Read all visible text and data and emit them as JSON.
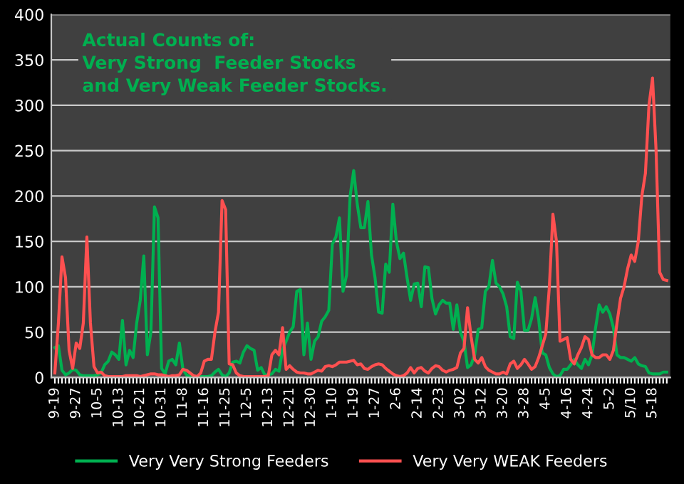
{
  "chart_data": {
    "type": "line",
    "title": "Actual Counts of:\nVery Strong  Feeder Stocks\nand Very Weak Feeder Stocks.",
    "categories": [
      "9-19",
      null,
      null,
      null,
      null,
      null,
      "9-27",
      null,
      null,
      null,
      null,
      null,
      "10-5",
      null,
      null,
      null,
      null,
      null,
      "10-13",
      null,
      null,
      null,
      null,
      null,
      "10-21",
      null,
      null,
      null,
      null,
      null,
      "10-31",
      null,
      null,
      null,
      null,
      null,
      "11-8",
      null,
      null,
      null,
      null,
      null,
      "11-16",
      null,
      null,
      null,
      null,
      null,
      "11-25",
      null,
      null,
      null,
      null,
      null,
      "12-5",
      null,
      null,
      null,
      null,
      null,
      "12-13",
      null,
      null,
      null,
      null,
      null,
      "12-21",
      null,
      null,
      null,
      null,
      null,
      "12-30",
      null,
      null,
      null,
      null,
      null,
      "1-10",
      null,
      null,
      null,
      null,
      null,
      "1-19",
      null,
      null,
      null,
      null,
      null,
      "1-27",
      null,
      null,
      null,
      null,
      null,
      "2-6",
      null,
      null,
      null,
      null,
      null,
      "2-14",
      null,
      null,
      null,
      null,
      null,
      "2-23",
      null,
      null,
      null,
      null,
      null,
      "3-02",
      null,
      null,
      null,
      null,
      null,
      "3-12",
      null,
      null,
      null,
      null,
      null,
      "3-20",
      null,
      null,
      null,
      null,
      null,
      "3-28",
      null,
      null,
      null,
      null,
      null,
      "4-5",
      null,
      null,
      null,
      null,
      null,
      "4-16",
      null,
      null,
      null,
      null,
      null,
      "4-24",
      null,
      null,
      null,
      null,
      null,
      "5-2",
      null,
      null,
      null,
      null,
      null,
      "5/10",
      null,
      null,
      null,
      null,
      null,
      "5-18",
      null,
      null,
      null,
      null
    ],
    "series": [
      {
        "name": "Very Very Strong Feeders",
        "color": "#00b050",
        "values": [
          33,
          35,
          8,
          3,
          5,
          9,
          8,
          3,
          2,
          2,
          2,
          2,
          3,
          5,
          14,
          18,
          28,
          25,
          20,
          63,
          14,
          30,
          22,
          60,
          85,
          134,
          25,
          50,
          188,
          176,
          10,
          4,
          18,
          20,
          14,
          38,
          9,
          3,
          1,
          1,
          1,
          1,
          1,
          1,
          2,
          6,
          9,
          3,
          1,
          5,
          17,
          18,
          16,
          28,
          35,
          32,
          30,
          8,
          11,
          3,
          3,
          4,
          9,
          7,
          30,
          40,
          50,
          56,
          95,
          97,
          25,
          60,
          20,
          40,
          45,
          62,
          67,
          74,
          147,
          155,
          176,
          95,
          113,
          200,
          228,
          191,
          165,
          165,
          194,
          135,
          110,
          72,
          71,
          125,
          116,
          191,
          150,
          131,
          137,
          110,
          85,
          103,
          104,
          78,
          122,
          121,
          87,
          70,
          80,
          85,
          82,
          82,
          53,
          80,
          50,
          40,
          11,
          14,
          25,
          53,
          55,
          95,
          100,
          129,
          104,
          100,
          92,
          78,
          45,
          43,
          105,
          95,
          52,
          52,
          65,
          88,
          64,
          27,
          25,
          11,
          4,
          1,
          2,
          9,
          9,
          14,
          20,
          14,
          10,
          20,
          14,
          25,
          55,
          80,
          72,
          78,
          70,
          55,
          25,
          22,
          22,
          20,
          18,
          22,
          15,
          13,
          12,
          5,
          4,
          4,
          4,
          6,
          6
        ]
      },
      {
        "name": "Very Very WEAK Feeders",
        "color": "#ff5050",
        "values": [
          5,
          60,
          133,
          110,
          30,
          10,
          38,
          32,
          60,
          155,
          60,
          12,
          5,
          6,
          2,
          1,
          1,
          1,
          1,
          1,
          2,
          2,
          2,
          2,
          1,
          2,
          3,
          4,
          4,
          3,
          3,
          2,
          1,
          2,
          2,
          3,
          9,
          8,
          5,
          2,
          1,
          5,
          18,
          20,
          20,
          50,
          72,
          195,
          185,
          15,
          14,
          5,
          2,
          1,
          1,
          1,
          1,
          1,
          1,
          1,
          2,
          25,
          30,
          25,
          55,
          9,
          13,
          9,
          6,
          5,
          5,
          4,
          4,
          6,
          8,
          7,
          12,
          13,
          12,
          14,
          17,
          17,
          17,
          18,
          19,
          14,
          15,
          10,
          9,
          12,
          14,
          15,
          14,
          10,
          7,
          4,
          2,
          1,
          2,
          5,
          11,
          5,
          10,
          11,
          7,
          5,
          10,
          13,
          12,
          8,
          6,
          8,
          9,
          11,
          27,
          32,
          77,
          45,
          20,
          16,
          22,
          12,
          8,
          6,
          4,
          4,
          6,
          4,
          15,
          18,
          10,
          14,
          20,
          15,
          9,
          12,
          22,
          35,
          48,
          100,
          180,
          150,
          40,
          42,
          44,
          20,
          15,
          25,
          33,
          45,
          42,
          25,
          22,
          22,
          25,
          25,
          20,
          30,
          60,
          87,
          100,
          120,
          135,
          128,
          150,
          200,
          225,
          300,
          330,
          250,
          116,
          108,
          107
        ]
      }
    ],
    "ylim": [
      0,
      400
    ],
    "yticks": [
      0,
      50,
      100,
      150,
      200,
      250,
      300,
      350,
      400
    ],
    "grid": "y",
    "legend": "bottom",
    "marker": "none",
    "line_style": "solid"
  }
}
